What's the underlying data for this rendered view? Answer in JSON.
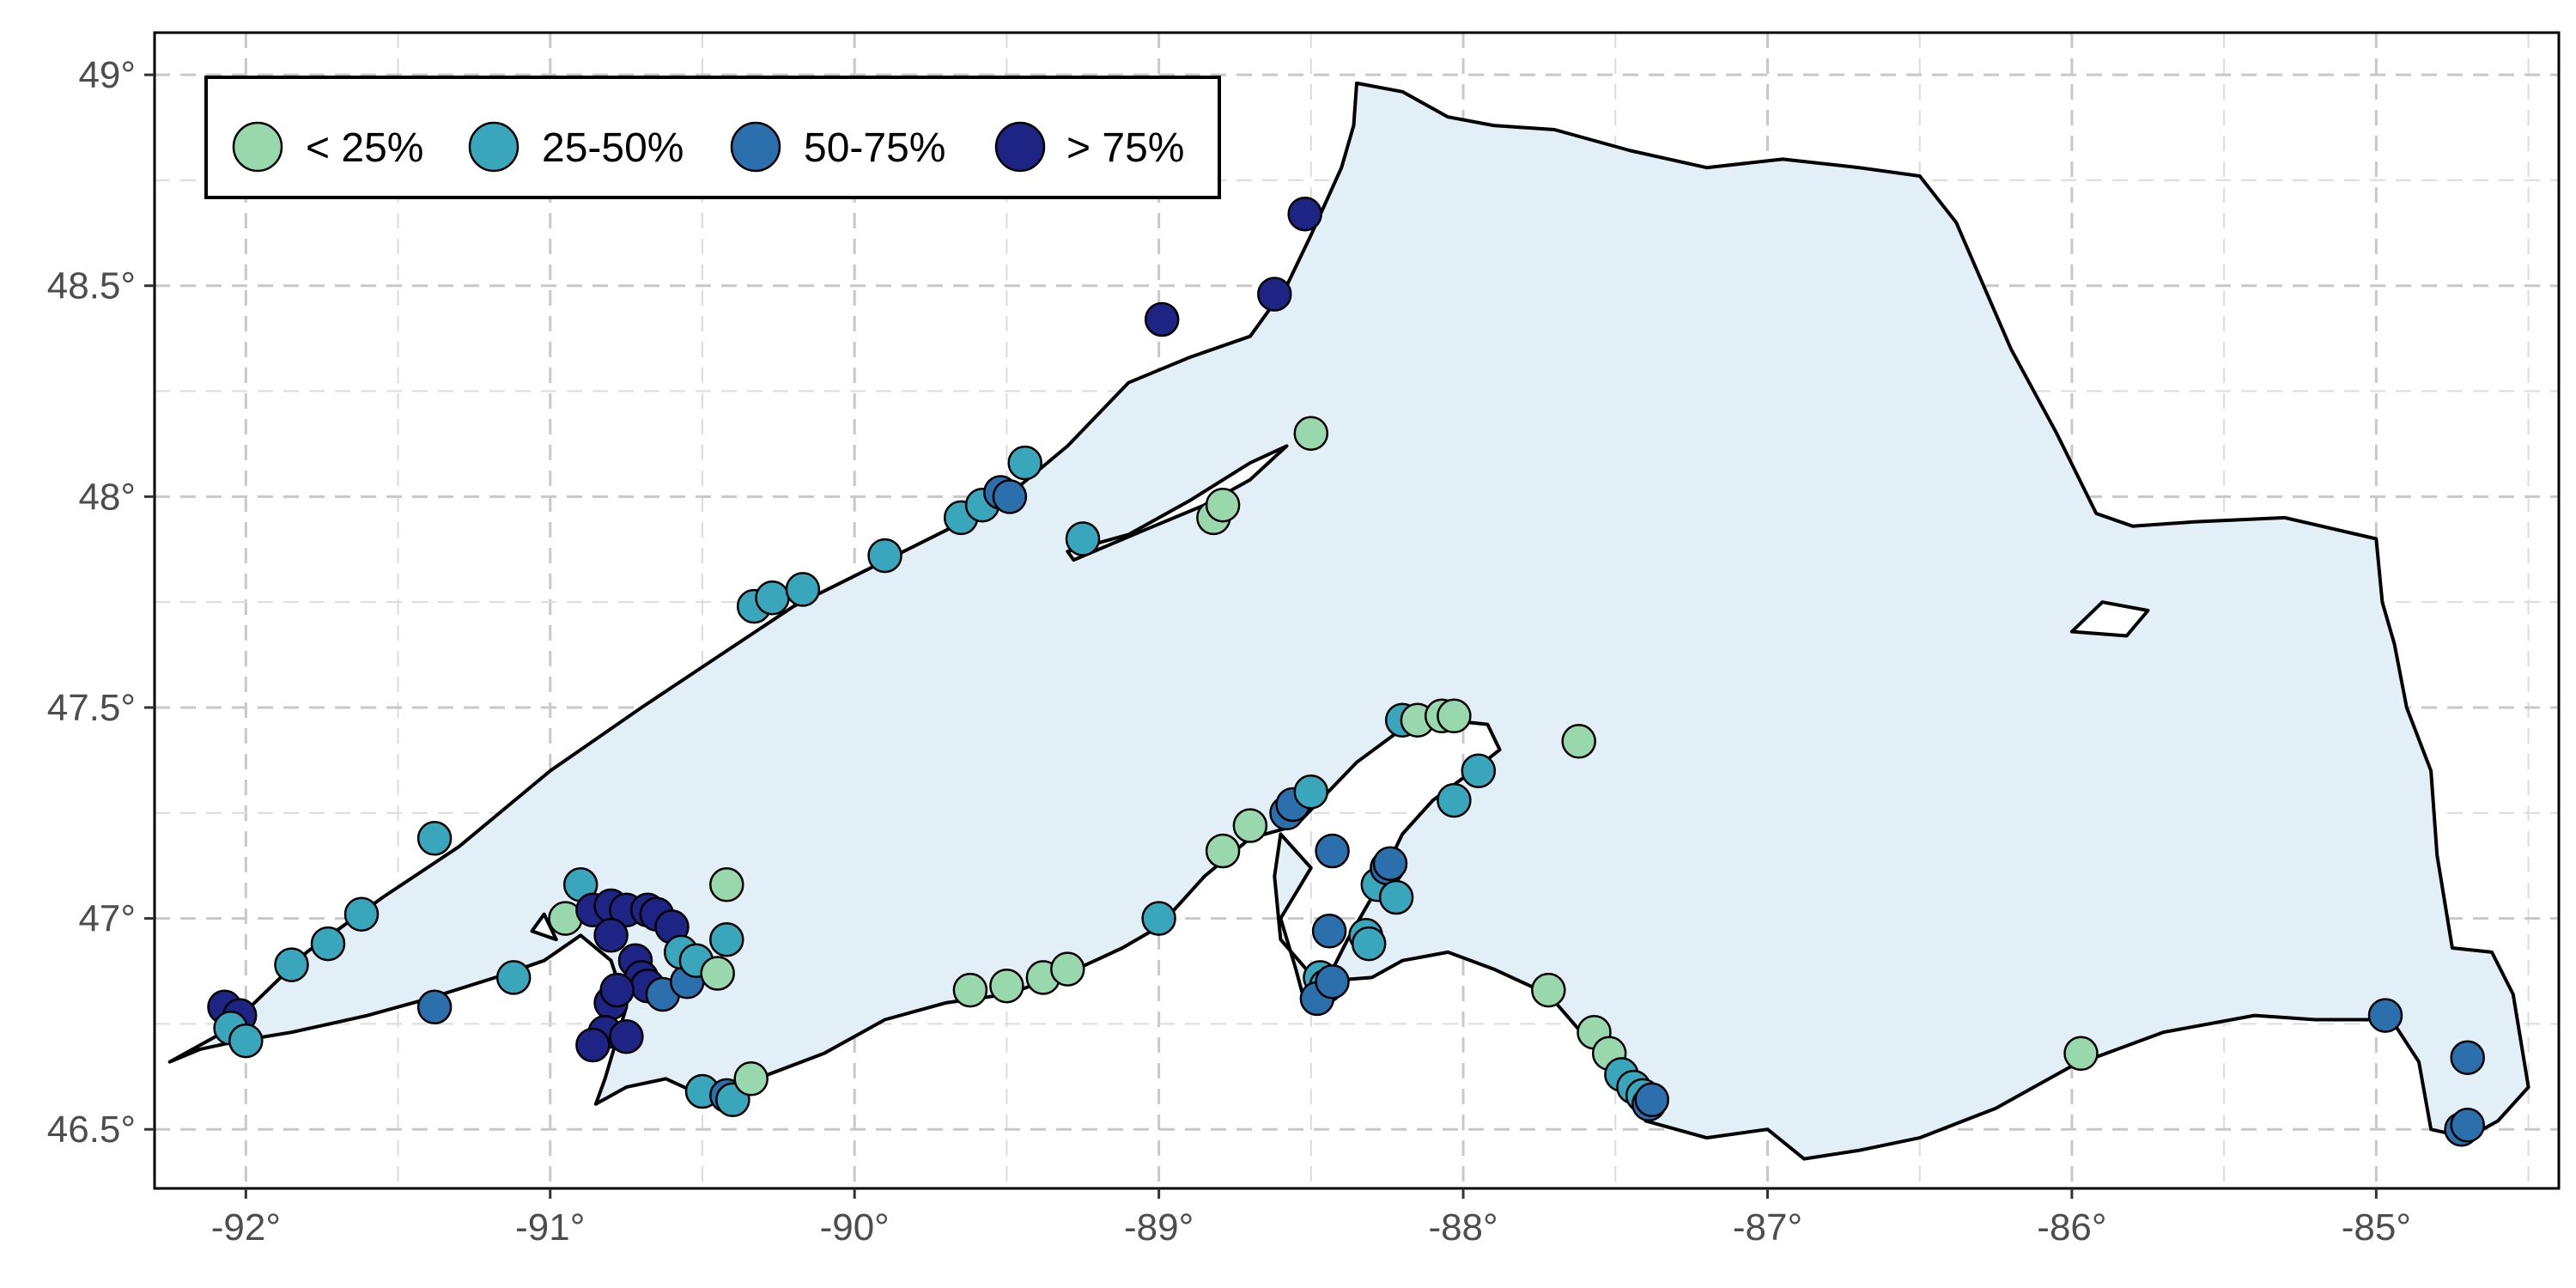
{
  "map": {
    "type": "scatter-map",
    "x_ticks": [
      {
        "value": -92,
        "label": "-92°"
      },
      {
        "value": -91,
        "label": "-91°"
      },
      {
        "value": -90,
        "label": "-90°"
      },
      {
        "value": -89,
        "label": "-89°"
      },
      {
        "value": -88,
        "label": "-88°"
      },
      {
        "value": -87,
        "label": "-87°"
      },
      {
        "value": -86,
        "label": "-86°"
      },
      {
        "value": -85,
        "label": "-85°"
      }
    ],
    "y_ticks": [
      {
        "value": 46.5,
        "label": "46.5°"
      },
      {
        "value": 47,
        "label": "47°"
      },
      {
        "value": 47.5,
        "label": "47.5°"
      },
      {
        "value": 48,
        "label": "48°"
      },
      {
        "value": 48.5,
        "label": "48.5°"
      },
      {
        "value": 49,
        "label": "49°"
      }
    ],
    "xlim": [
      -92.3,
      -84.4
    ],
    "ylim": [
      46.36,
      49.1
    ],
    "grid": "dashed major and minor",
    "legend_position": "top-left",
    "colors": {
      "lake_fill": "#e3eff6",
      "shoreline": "#000000",
      "class_lt25": "#98d8ac",
      "class_25_50": "#3aa6bc",
      "class_50_75": "#2c6fad",
      "class_gt75": "#1d2483"
    },
    "legend": [
      {
        "key": "lt25",
        "label": "< 25%",
        "color": "#98d8ac"
      },
      {
        "key": "25_50",
        "label": "25-50%",
        "color": "#3aa6bc"
      },
      {
        "key": "50_75",
        "label": "50-75%",
        "color": "#2c6fad"
      },
      {
        "key": "gt75",
        "label": "> 75%",
        "color": "#1d2483"
      }
    ],
    "shoreline": [
      [
        -92.25,
        46.66
      ],
      [
        -92.15,
        46.69
      ],
      [
        -92.02,
        46.71
      ],
      [
        -91.85,
        46.73
      ],
      [
        -91.6,
        46.77
      ],
      [
        -91.4,
        46.81
      ],
      [
        -91.18,
        46.86
      ],
      [
        -91.02,
        46.9
      ],
      [
        -90.9,
        46.96
      ],
      [
        -90.8,
        46.9
      ],
      [
        -90.75,
        46.79
      ],
      [
        -90.82,
        46.62
      ],
      [
        -90.85,
        46.56
      ],
      [
        -90.75,
        46.6
      ],
      [
        -90.62,
        46.62
      ],
      [
        -90.5,
        46.58
      ],
      [
        -90.38,
        46.55
      ],
      [
        -90.32,
        46.62
      ],
      [
        -90.1,
        46.68
      ],
      [
        -89.9,
        46.76
      ],
      [
        -89.7,
        46.8
      ],
      [
        -89.5,
        46.82
      ],
      [
        -89.3,
        46.87
      ],
      [
        -89.12,
        46.93
      ],
      [
        -89.0,
        46.98
      ],
      [
        -88.85,
        47.1
      ],
      [
        -88.7,
        47.19
      ],
      [
        -88.55,
        47.22
      ],
      [
        -88.35,
        47.37
      ],
      [
        -88.2,
        47.45
      ],
      [
        -88.05,
        47.47
      ],
      [
        -87.92,
        47.46
      ],
      [
        -87.88,
        47.4
      ],
      [
        -87.95,
        47.36
      ],
      [
        -88.1,
        47.28
      ],
      [
        -88.2,
        47.2
      ],
      [
        -88.3,
        47.05
      ],
      [
        -88.38,
        46.95
      ],
      [
        -88.45,
        46.85
      ],
      [
        -88.52,
        46.8
      ],
      [
        -88.55,
        46.88
      ],
      [
        -88.6,
        47.0
      ],
      [
        -88.5,
        47.12
      ],
      [
        -88.6,
        47.2
      ],
      [
        -88.62,
        47.1
      ],
      [
        -88.6,
        46.95
      ],
      [
        -88.48,
        46.85
      ],
      [
        -88.3,
        46.86
      ],
      [
        -88.2,
        46.9
      ],
      [
        -88.05,
        46.92
      ],
      [
        -87.9,
        46.88
      ],
      [
        -87.72,
        46.82
      ],
      [
        -87.6,
        46.72
      ],
      [
        -87.5,
        46.62
      ],
      [
        -87.4,
        46.52
      ],
      [
        -87.2,
        46.48
      ],
      [
        -87.0,
        46.5
      ],
      [
        -86.88,
        46.43
      ],
      [
        -86.7,
        46.45
      ],
      [
        -86.5,
        46.48
      ],
      [
        -86.25,
        46.55
      ],
      [
        -86.0,
        46.65
      ],
      [
        -85.7,
        46.73
      ],
      [
        -85.4,
        46.77
      ],
      [
        -85.2,
        46.76
      ],
      [
        -85.05,
        46.76
      ],
      [
        -84.95,
        46.76
      ],
      [
        -84.86,
        46.66
      ],
      [
        -84.82,
        46.5
      ],
      [
        -84.7,
        46.48
      ],
      [
        -84.6,
        46.52
      ],
      [
        -84.5,
        46.6
      ],
      [
        -84.55,
        46.82
      ],
      [
        -84.62,
        46.92
      ],
      [
        -84.75,
        46.93
      ],
      [
        -84.8,
        47.15
      ],
      [
        -84.82,
        47.35
      ],
      [
        -84.9,
        47.5
      ],
      [
        -84.94,
        47.65
      ],
      [
        -84.98,
        47.75
      ],
      [
        -85.0,
        47.9
      ],
      [
        -85.3,
        47.95
      ],
      [
        -85.6,
        47.94
      ],
      [
        -85.8,
        47.93
      ],
      [
        -85.92,
        47.96
      ],
      [
        -86.05,
        48.15
      ],
      [
        -86.2,
        48.35
      ],
      [
        -86.38,
        48.65
      ],
      [
        -86.5,
        48.76
      ],
      [
        -86.7,
        48.78
      ],
      [
        -86.95,
        48.8
      ],
      [
        -87.2,
        48.78
      ],
      [
        -87.45,
        48.82
      ],
      [
        -87.7,
        48.87
      ],
      [
        -87.9,
        48.88
      ],
      [
        -88.05,
        48.9
      ],
      [
        -88.2,
        48.96
      ],
      [
        -88.35,
        48.98
      ],
      [
        -88.36,
        48.88
      ],
      [
        -88.4,
        48.78
      ],
      [
        -88.5,
        48.62
      ],
      [
        -88.58,
        48.5
      ],
      [
        -88.7,
        48.38
      ],
      [
        -88.9,
        48.33
      ],
      [
        -89.1,
        48.27
      ],
      [
        -89.3,
        48.12
      ],
      [
        -89.5,
        48.0
      ],
      [
        -89.7,
        47.92
      ],
      [
        -89.95,
        47.83
      ],
      [
        -90.2,
        47.74
      ],
      [
        -90.45,
        47.62
      ],
      [
        -90.7,
        47.5
      ],
      [
        -91.0,
        47.35
      ],
      [
        -91.3,
        47.17
      ],
      [
        -91.55,
        47.05
      ],
      [
        -91.8,
        46.92
      ],
      [
        -92.0,
        46.78
      ],
      [
        -92.1,
        46.72
      ],
      [
        -92.25,
        46.66
      ]
    ],
    "islands": [
      [
        [
          -89.28,
          47.85
        ],
        [
          -89.05,
          47.92
        ],
        [
          -88.85,
          47.98
        ],
        [
          -88.7,
          48.04
        ],
        [
          -88.58,
          48.12
        ],
        [
          -88.7,
          48.08
        ],
        [
          -88.9,
          47.99
        ],
        [
          -89.1,
          47.91
        ],
        [
          -89.3,
          47.87
        ]
      ],
      [
        [
          -86.0,
          47.68
        ],
        [
          -85.9,
          47.75
        ],
        [
          -85.75,
          47.73
        ],
        [
          -85.82,
          47.67
        ]
      ],
      [
        [
          -91.02,
          47.01
        ],
        [
          -90.98,
          46.95
        ],
        [
          -91.06,
          46.97
        ]
      ]
    ],
    "sites": [
      {
        "lon": -92.07,
        "lat": 46.79,
        "cls": "gt75"
      },
      {
        "lon": -92.02,
        "lat": 46.77,
        "cls": "gt75"
      },
      {
        "lon": -92.05,
        "lat": 46.74,
        "cls": "25_50"
      },
      {
        "lon": -92.0,
        "lat": 46.71,
        "cls": "25_50"
      },
      {
        "lon": -91.85,
        "lat": 46.89,
        "cls": "25_50"
      },
      {
        "lon": -91.73,
        "lat": 46.94,
        "cls": "25_50"
      },
      {
        "lon": -91.62,
        "lat": 47.01,
        "cls": "25_50"
      },
      {
        "lon": -91.38,
        "lat": 47.19,
        "cls": "25_50"
      },
      {
        "lon": -91.38,
        "lat": 46.79,
        "cls": "50_75"
      },
      {
        "lon": -91.12,
        "lat": 46.86,
        "cls": "25_50"
      },
      {
        "lon": -90.95,
        "lat": 47.0,
        "cls": "lt25"
      },
      {
        "lon": -90.9,
        "lat": 47.08,
        "cls": "25_50"
      },
      {
        "lon": -90.86,
        "lat": 47.02,
        "cls": "gt75"
      },
      {
        "lon": -90.8,
        "lat": 47.03,
        "cls": "gt75"
      },
      {
        "lon": -90.75,
        "lat": 47.02,
        "cls": "gt75"
      },
      {
        "lon": -90.68,
        "lat": 47.02,
        "cls": "gt75"
      },
      {
        "lon": -90.65,
        "lat": 47.01,
        "cls": "gt75"
      },
      {
        "lon": -90.6,
        "lat": 46.98,
        "cls": "gt75"
      },
      {
        "lon": -90.8,
        "lat": 46.96,
        "cls": "gt75"
      },
      {
        "lon": -90.72,
        "lat": 46.9,
        "cls": "gt75"
      },
      {
        "lon": -90.7,
        "lat": 46.86,
        "cls": "gt75"
      },
      {
        "lon": -90.68,
        "lat": 46.84,
        "cls": "gt75"
      },
      {
        "lon": -90.8,
        "lat": 46.8,
        "cls": "gt75"
      },
      {
        "lon": -90.78,
        "lat": 46.83,
        "cls": "gt75"
      },
      {
        "lon": -90.82,
        "lat": 46.73,
        "cls": "gt75"
      },
      {
        "lon": -90.86,
        "lat": 46.7,
        "cls": "gt75"
      },
      {
        "lon": -90.75,
        "lat": 46.72,
        "cls": "gt75"
      },
      {
        "lon": -90.63,
        "lat": 46.82,
        "cls": "50_75"
      },
      {
        "lon": -90.55,
        "lat": 46.85,
        "cls": "50_75"
      },
      {
        "lon": -90.57,
        "lat": 46.92,
        "cls": "25_50"
      },
      {
        "lon": -90.52,
        "lat": 46.9,
        "cls": "25_50"
      },
      {
        "lon": -90.45,
        "lat": 46.87,
        "cls": "lt25"
      },
      {
        "lon": -90.42,
        "lat": 46.95,
        "cls": "25_50"
      },
      {
        "lon": -90.42,
        "lat": 47.08,
        "cls": "lt25"
      },
      {
        "lon": -90.5,
        "lat": 46.59,
        "cls": "25_50"
      },
      {
        "lon": -90.42,
        "lat": 46.58,
        "cls": "50_75"
      },
      {
        "lon": -90.4,
        "lat": 46.57,
        "cls": "25_50"
      },
      {
        "lon": -90.34,
        "lat": 46.62,
        "cls": "lt25"
      },
      {
        "lon": -90.33,
        "lat": 47.74,
        "cls": "25_50"
      },
      {
        "lon": -90.27,
        "lat": 47.76,
        "cls": "25_50"
      },
      {
        "lon": -90.17,
        "lat": 47.78,
        "cls": "25_50"
      },
      {
        "lon": -89.9,
        "lat": 47.86,
        "cls": "25_50"
      },
      {
        "lon": -89.65,
        "lat": 47.95,
        "cls": "25_50"
      },
      {
        "lon": -89.58,
        "lat": 47.98,
        "cls": "25_50"
      },
      {
        "lon": -89.52,
        "lat": 48.01,
        "cls": "50_75"
      },
      {
        "lon": -89.49,
        "lat": 48.0,
        "cls": "50_75"
      },
      {
        "lon": -89.44,
        "lat": 48.08,
        "cls": "25_50"
      },
      {
        "lon": -89.25,
        "lat": 47.9,
        "cls": "25_50"
      },
      {
        "lon": -88.99,
        "lat": 48.42,
        "cls": "gt75"
      },
      {
        "lon": -88.82,
        "lat": 47.95,
        "cls": "lt25"
      },
      {
        "lon": -88.79,
        "lat": 47.98,
        "cls": "lt25"
      },
      {
        "lon": -88.62,
        "lat": 48.48,
        "cls": "gt75"
      },
      {
        "lon": -88.52,
        "lat": 48.67,
        "cls": "gt75"
      },
      {
        "lon": -88.5,
        "lat": 48.15,
        "cls": "lt25"
      },
      {
        "lon": -89.62,
        "lat": 46.83,
        "cls": "lt25"
      },
      {
        "lon": -89.5,
        "lat": 46.84,
        "cls": "lt25"
      },
      {
        "lon": -89.38,
        "lat": 46.86,
        "cls": "lt25"
      },
      {
        "lon": -89.3,
        "lat": 46.88,
        "cls": "lt25"
      },
      {
        "lon": -89.0,
        "lat": 47.0,
        "cls": "25_50"
      },
      {
        "lon": -88.79,
        "lat": 47.16,
        "cls": "lt25"
      },
      {
        "lon": -88.7,
        "lat": 47.22,
        "cls": "lt25"
      },
      {
        "lon": -88.58,
        "lat": 47.25,
        "cls": "50_75"
      },
      {
        "lon": -88.56,
        "lat": 47.27,
        "cls": "50_75"
      },
      {
        "lon": -88.5,
        "lat": 47.3,
        "cls": "25_50"
      },
      {
        "lon": -88.43,
        "lat": 47.16,
        "cls": "50_75"
      },
      {
        "lon": -88.44,
        "lat": 46.97,
        "cls": "50_75"
      },
      {
        "lon": -88.47,
        "lat": 46.86,
        "cls": "25_50"
      },
      {
        "lon": -88.45,
        "lat": 46.84,
        "cls": "25_50"
      },
      {
        "lon": -88.48,
        "lat": 46.81,
        "cls": "50_75"
      },
      {
        "lon": -88.43,
        "lat": 46.85,
        "cls": "50_75"
      },
      {
        "lon": -88.32,
        "lat": 46.96,
        "cls": "25_50"
      },
      {
        "lon": -88.31,
        "lat": 46.94,
        "cls": "25_50"
      },
      {
        "lon": -88.28,
        "lat": 47.08,
        "cls": "25_50"
      },
      {
        "lon": -88.25,
        "lat": 47.12,
        "cls": "50_75"
      },
      {
        "lon": -88.24,
        "lat": 47.13,
        "cls": "50_75"
      },
      {
        "lon": -88.22,
        "lat": 47.05,
        "cls": "25_50"
      },
      {
        "lon": -88.2,
        "lat": 47.47,
        "cls": "25_50"
      },
      {
        "lon": -88.15,
        "lat": 47.47,
        "cls": "lt25"
      },
      {
        "lon": -88.07,
        "lat": 47.48,
        "cls": "lt25"
      },
      {
        "lon": -88.03,
        "lat": 47.48,
        "cls": "lt25"
      },
      {
        "lon": -88.03,
        "lat": 47.28,
        "cls": "25_50"
      },
      {
        "lon": -87.95,
        "lat": 47.35,
        "cls": "25_50"
      },
      {
        "lon": -87.62,
        "lat": 47.42,
        "cls": "lt25"
      },
      {
        "lon": -87.72,
        "lat": 46.83,
        "cls": "lt25"
      },
      {
        "lon": -87.57,
        "lat": 46.73,
        "cls": "lt25"
      },
      {
        "lon": -87.52,
        "lat": 46.68,
        "cls": "lt25"
      },
      {
        "lon": -87.48,
        "lat": 46.63,
        "cls": "25_50"
      },
      {
        "lon": -87.44,
        "lat": 46.6,
        "cls": "25_50"
      },
      {
        "lon": -87.41,
        "lat": 46.58,
        "cls": "25_50"
      },
      {
        "lon": -87.39,
        "lat": 46.56,
        "cls": "50_75"
      },
      {
        "lon": -87.38,
        "lat": 46.57,
        "cls": "50_75"
      },
      {
        "lon": -85.97,
        "lat": 46.68,
        "cls": "lt25"
      },
      {
        "lon": -84.97,
        "lat": 46.77,
        "cls": "50_75"
      },
      {
        "lon": -84.7,
        "lat": 46.67,
        "cls": "50_75"
      },
      {
        "lon": -84.72,
        "lat": 46.5,
        "cls": "50_75"
      },
      {
        "lon": -84.7,
        "lat": 46.51,
        "cls": "50_75"
      }
    ]
  }
}
